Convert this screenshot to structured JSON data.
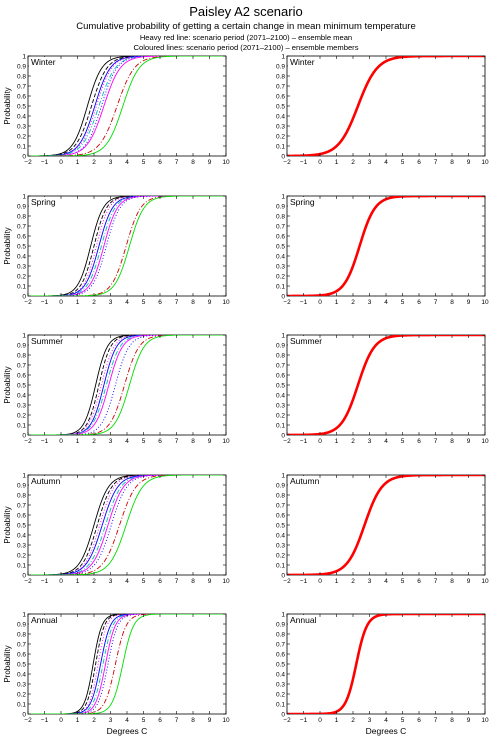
{
  "header": {
    "title": "Paisley A2 scenario",
    "subtitle": "Cumulative probability of getting a certain change in mean minimum temperature",
    "note1": "Heavy red line: scenario period (2071–2100) – ensemble mean",
    "note2": "Coloured lines: scenario period (2071–2100) – ensemble members"
  },
  "chart_data": {
    "type": "line",
    "xlabel": "Degrees C",
    "ylabel": "Probability",
    "xlim": [
      -2,
      10
    ],
    "ylim": [
      0,
      1
    ],
    "xticks": [
      "−2",
      "−1",
      "0",
      "1",
      "2",
      "3",
      "4",
      "5",
      "6",
      "7",
      "8",
      "9",
      "10"
    ],
    "yticks": [
      "0",
      "0.1",
      "0.2",
      "0.3",
      "0.4",
      "0.5",
      "0.6",
      "0.7",
      "0.8",
      "0.9",
      "1"
    ],
    "grid": false,
    "seasons": [
      {
        "label": "Winter",
        "mean": {
          "median": 2.3,
          "spread": 1.0
        },
        "members": [
          {
            "median": 1.6,
            "spread": 0.75,
            "color": "#000000",
            "dash": "solid"
          },
          {
            "median": 1.85,
            "spread": 0.8,
            "color": "#000000",
            "dash": "dash"
          },
          {
            "median": 2.05,
            "spread": 0.8,
            "color": "#0000ff",
            "dash": "solid"
          },
          {
            "median": 2.15,
            "spread": 0.8,
            "color": "#ff00ff",
            "dash": "dot"
          },
          {
            "median": 2.3,
            "spread": 0.85,
            "color": "#00bfbf",
            "dash": "dashdot"
          },
          {
            "median": 2.45,
            "spread": 0.8,
            "color": "#0000ff",
            "dash": "dot"
          },
          {
            "median": 2.6,
            "spread": 0.85,
            "color": "#ff00ff",
            "dash": "solid"
          },
          {
            "median": 3.4,
            "spread": 0.9,
            "color": "#d00000",
            "dash": "dashdot"
          },
          {
            "median": 3.75,
            "spread": 0.85,
            "color": "#00dd00",
            "dash": "solid"
          }
        ]
      },
      {
        "label": "Spring",
        "mean": {
          "median": 2.4,
          "spread": 0.8
        },
        "members": [
          {
            "median": 1.8,
            "spread": 0.65,
            "color": "#000000",
            "dash": "solid"
          },
          {
            "median": 2.0,
            "spread": 0.65,
            "color": "#000000",
            "dash": "dash"
          },
          {
            "median": 2.15,
            "spread": 0.65,
            "color": "#ff00ff",
            "dash": "dot"
          },
          {
            "median": 2.3,
            "spread": 0.7,
            "color": "#0000ff",
            "dash": "solid"
          },
          {
            "median": 2.45,
            "spread": 0.7,
            "color": "#00bfbf",
            "dash": "dashdot"
          },
          {
            "median": 2.6,
            "spread": 0.7,
            "color": "#ff00ff",
            "dash": "solid"
          },
          {
            "median": 2.75,
            "spread": 0.7,
            "color": "#0000ff",
            "dash": "dot"
          },
          {
            "median": 3.95,
            "spread": 0.75,
            "color": "#d00000",
            "dash": "dashdot"
          },
          {
            "median": 4.15,
            "spread": 0.75,
            "color": "#00dd00",
            "dash": "solid"
          }
        ]
      },
      {
        "label": "Summer",
        "mean": {
          "median": 2.3,
          "spread": 0.85
        },
        "members": [
          {
            "median": 2.1,
            "spread": 0.6,
            "color": "#000000",
            "dash": "solid"
          },
          {
            "median": 2.3,
            "spread": 0.6,
            "color": "#000000",
            "dash": "dash"
          },
          {
            "median": 2.45,
            "spread": 0.65,
            "color": "#ff00ff",
            "dash": "dot"
          },
          {
            "median": 2.6,
            "spread": 0.65,
            "color": "#0000ff",
            "dash": "solid"
          },
          {
            "median": 2.75,
            "spread": 0.7,
            "color": "#00bfbf",
            "dash": "dashdot"
          },
          {
            "median": 2.9,
            "spread": 0.7,
            "color": "#ff00ff",
            "dash": "solid"
          },
          {
            "median": 3.3,
            "spread": 0.7,
            "color": "#0000ff",
            "dash": "dot"
          },
          {
            "median": 3.85,
            "spread": 0.75,
            "color": "#d00000",
            "dash": "dashdot"
          },
          {
            "median": 4.15,
            "spread": 0.75,
            "color": "#00dd00",
            "dash": "solid"
          }
        ]
      },
      {
        "label": "Autumn",
        "mean": {
          "median": 2.7,
          "spread": 0.9
        },
        "members": [
          {
            "median": 2.0,
            "spread": 0.75,
            "color": "#000000",
            "dash": "solid"
          },
          {
            "median": 2.2,
            "spread": 0.75,
            "color": "#000000",
            "dash": "dash"
          },
          {
            "median": 2.35,
            "spread": 0.75,
            "color": "#ff00ff",
            "dash": "dot"
          },
          {
            "median": 2.5,
            "spread": 0.8,
            "color": "#0000ff",
            "dash": "solid"
          },
          {
            "median": 2.7,
            "spread": 0.8,
            "color": "#00bfbf",
            "dash": "dashdot"
          },
          {
            "median": 2.85,
            "spread": 0.8,
            "color": "#ff00ff",
            "dash": "solid"
          },
          {
            "median": 3.05,
            "spread": 0.8,
            "color": "#0000ff",
            "dash": "dot"
          },
          {
            "median": 3.55,
            "spread": 0.85,
            "color": "#d00000",
            "dash": "dashdot"
          },
          {
            "median": 3.95,
            "spread": 0.85,
            "color": "#00dd00",
            "dash": "solid"
          }
        ]
      },
      {
        "label": "Annual",
        "mean": {
          "median": 2.2,
          "spread": 0.55
        },
        "members": [
          {
            "median": 1.95,
            "spread": 0.45,
            "color": "#000000",
            "dash": "solid"
          },
          {
            "median": 2.1,
            "spread": 0.45,
            "color": "#000000",
            "dash": "dash"
          },
          {
            "median": 2.25,
            "spread": 0.45,
            "color": "#ff00ff",
            "dash": "dot"
          },
          {
            "median": 2.4,
            "spread": 0.5,
            "color": "#0000ff",
            "dash": "solid"
          },
          {
            "median": 2.55,
            "spread": 0.5,
            "color": "#00bfbf",
            "dash": "dashdot"
          },
          {
            "median": 2.7,
            "spread": 0.5,
            "color": "#ff00ff",
            "dash": "solid"
          },
          {
            "median": 2.85,
            "spread": 0.5,
            "color": "#0000ff",
            "dash": "dot"
          },
          {
            "median": 3.3,
            "spread": 0.55,
            "color": "#d00000",
            "dash": "dashdot"
          },
          {
            "median": 3.75,
            "spread": 0.55,
            "color": "#00dd00",
            "dash": "solid"
          }
        ]
      }
    ]
  },
  "colors": {
    "mean_line": "#ff0000",
    "axis": "#000000"
  }
}
